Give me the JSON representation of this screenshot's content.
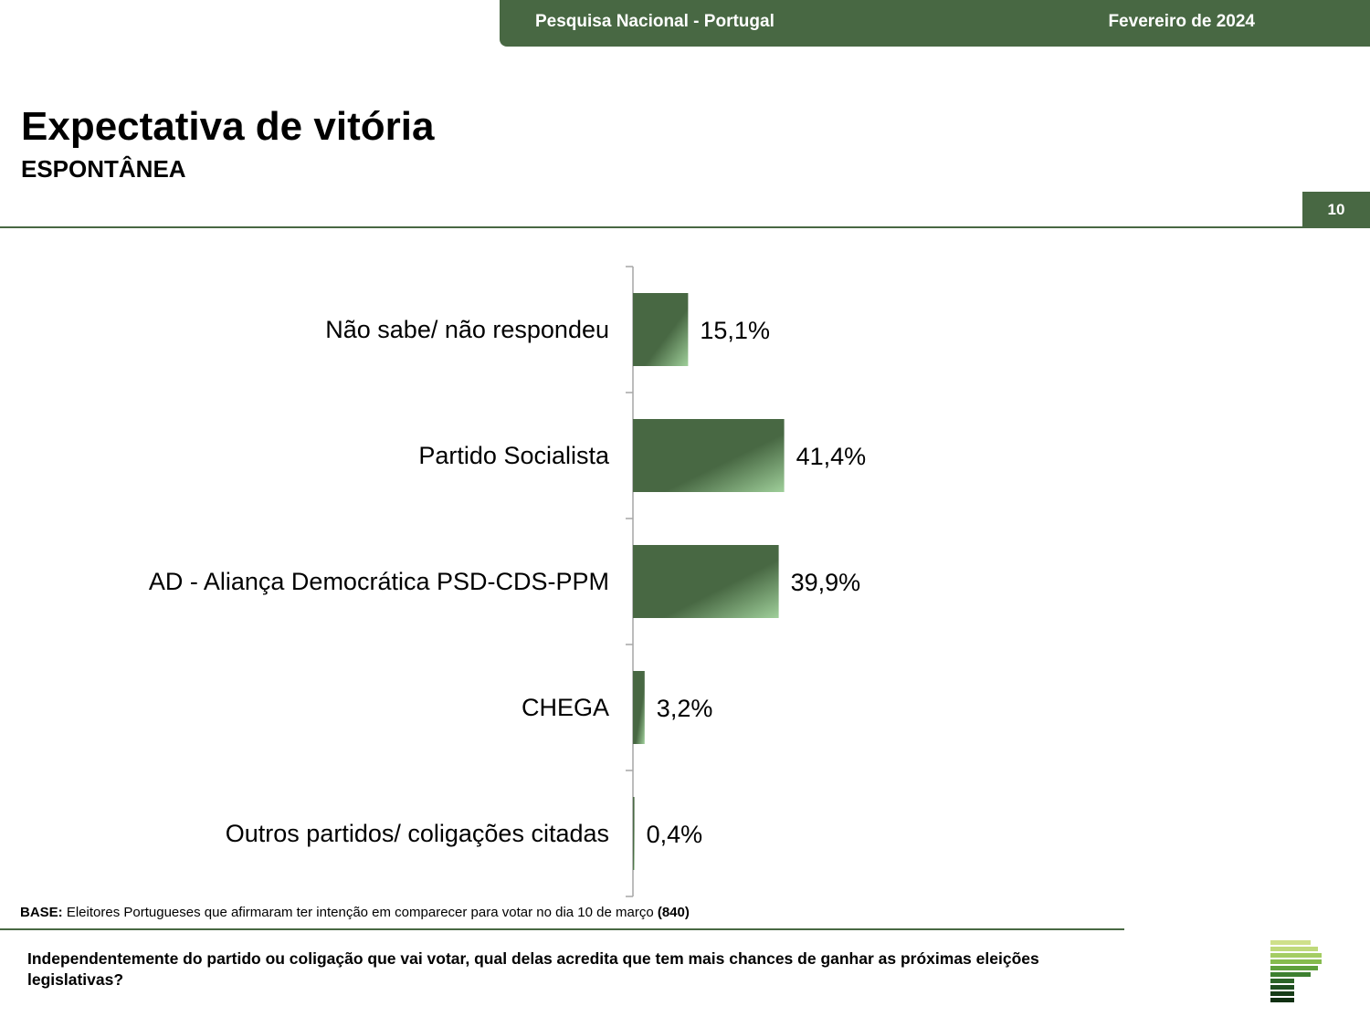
{
  "header": {
    "survey_label": "Pesquisa Nacional - Portugal",
    "date_label": "Fevereiro de 2024"
  },
  "title": "Expectativa de vitória",
  "subtitle": "ESPONTÂNEA",
  "page_number": "10",
  "chart_data": {
    "type": "bar",
    "orientation": "horizontal",
    "categories": [
      "Não sabe/ não respondeu",
      "Partido Socialista",
      "AD - Aliança Democrática PSD-CDS-PPM",
      "CHEGA",
      "Outros partidos/ coligações citadas"
    ],
    "values": [
      15.1,
      41.4,
      39.9,
      3.2,
      0.4
    ],
    "value_labels": [
      "15,1%",
      "41,4%",
      "39,9%",
      "3,2%",
      "0,4%"
    ],
    "unit": "%",
    "xlim": [
      0,
      100
    ],
    "grid": false,
    "legend": "none",
    "bar_color": "#486843"
  },
  "footer": {
    "base_label": "BASE:",
    "base_text": "Eleitores Portugueses que afirmaram ter intenção em comparecer para votar no dia 10 de março",
    "base_count": "(840)",
    "question": "Independentemente do partido ou coligação que vai votar, qual delas acredita que tem mais chances de ganhar as próximas eleições legislativas?"
  },
  "colors": {
    "brand_green": "#486843"
  }
}
